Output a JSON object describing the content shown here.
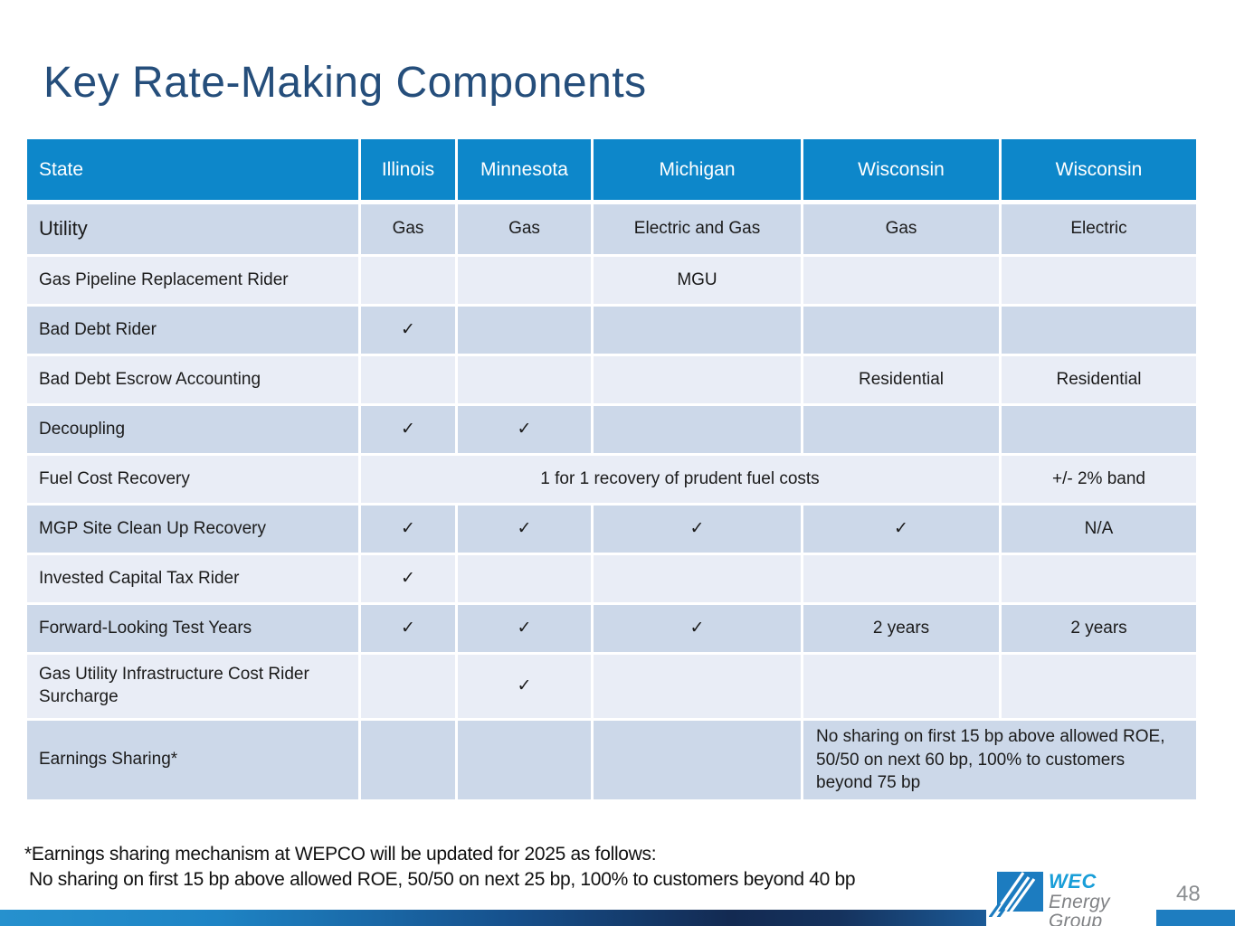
{
  "slide": {
    "title": "Key Rate-Making Components",
    "page_number": "48"
  },
  "table": {
    "columns": [
      "State",
      "Illinois",
      "Minnesota",
      "Michigan",
      "Wisconsin",
      "Wisconsin"
    ],
    "rows": [
      {
        "label": "Utility",
        "shade": "dark",
        "cells": [
          {
            "text": "Gas"
          },
          {
            "text": "Gas"
          },
          {
            "text": "Electric and Gas"
          },
          {
            "text": "Gas"
          },
          {
            "text": "Electric"
          }
        ]
      },
      {
        "label": "Gas Pipeline Replacement Rider",
        "shade": "light",
        "cells": [
          {
            "text": ""
          },
          {
            "text": ""
          },
          {
            "text": "MGU"
          },
          {
            "text": ""
          },
          {
            "text": ""
          }
        ]
      },
      {
        "label": "Bad Debt Rider",
        "shade": "dark",
        "cells": [
          {
            "text": "✓"
          },
          {
            "text": ""
          },
          {
            "text": ""
          },
          {
            "text": ""
          },
          {
            "text": ""
          }
        ]
      },
      {
        "label": "Bad Debt Escrow Accounting",
        "shade": "light",
        "cells": [
          {
            "text": ""
          },
          {
            "text": ""
          },
          {
            "text": ""
          },
          {
            "text": "Residential"
          },
          {
            "text": "Residential"
          }
        ]
      },
      {
        "label": "Decoupling",
        "shade": "dark",
        "cells": [
          {
            "text": "✓"
          },
          {
            "text": "✓"
          },
          {
            "text": ""
          },
          {
            "text": ""
          },
          {
            "text": ""
          }
        ]
      },
      {
        "label": "Fuel Cost Recovery",
        "shade": "light",
        "cells": [
          {
            "text": "1 for 1 recovery of prudent fuel costs",
            "colspan": 4
          },
          {
            "text": "+/- 2% band"
          }
        ]
      },
      {
        "label": "MGP Site Clean Up Recovery",
        "shade": "dark",
        "cells": [
          {
            "text": "✓"
          },
          {
            "text": "✓"
          },
          {
            "text": "✓"
          },
          {
            "text": "✓"
          },
          {
            "text": "N/A"
          }
        ]
      },
      {
        "label": "Invested Capital Tax Rider",
        "shade": "light",
        "cells": [
          {
            "text": "✓"
          },
          {
            "text": ""
          },
          {
            "text": ""
          },
          {
            "text": ""
          },
          {
            "text": ""
          }
        ]
      },
      {
        "label": "Forward-Looking Test Years",
        "shade": "dark",
        "cells": [
          {
            "text": "✓"
          },
          {
            "text": "✓"
          },
          {
            "text": "✓"
          },
          {
            "text": "2 years"
          },
          {
            "text": "2 years"
          }
        ]
      },
      {
        "label": "Gas Utility Infrastructure Cost Rider Surcharge",
        "shade": "light",
        "cells": [
          {
            "text": ""
          },
          {
            "text": "✓"
          },
          {
            "text": ""
          },
          {
            "text": ""
          },
          {
            "text": ""
          }
        ]
      },
      {
        "label": "Earnings Sharing*",
        "shade": "dark",
        "cells": [
          {
            "text": ""
          },
          {
            "text": ""
          },
          {
            "text": ""
          },
          {
            "text": "No sharing on first 15 bp above allowed ROE, 50/50 on next 60 bp, 100% to customers beyond 75 bp",
            "colspan": 2,
            "align": "left"
          }
        ]
      }
    ]
  },
  "footnote": {
    "line1": "*Earnings sharing mechanism at WEPCO will be updated for 2025 as follows:",
    "line2": "No sharing on first 15 bp above allowed ROE, 50/50 on next 25 bp, 100% to customers beyond 40 bp"
  },
  "logo": {
    "name": "WEC",
    "subname": "Energy Group"
  },
  "colors": {
    "header_blue": "#0d87ca",
    "row_dark": "#ccd8e9",
    "row_light": "#e9edf6",
    "title_blue": "#254e7b",
    "logo_blue": "#199ed8",
    "logo_gray": "#808285",
    "bar_blue": "#1e7dc0"
  }
}
